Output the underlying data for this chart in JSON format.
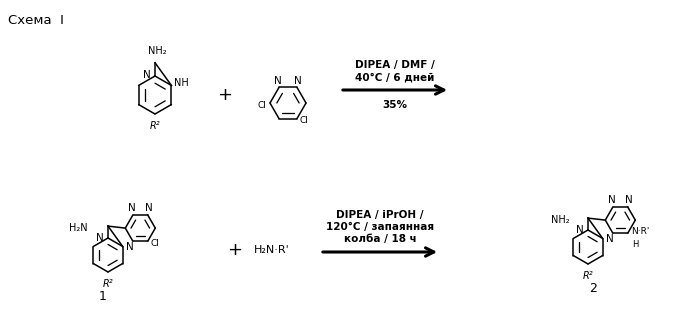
{
  "title": "Схема  I",
  "r1_cond1": "DIPEA / DMF /",
  "r1_cond2": "40°C / 6 дней",
  "r1_yield": "35%",
  "r2_cond1": "DIPEA / iPrOH /",
  "r2_cond2": "120°C / запаянная",
  "r2_cond3": "колба / 18 ч",
  "plus": "+",
  "label1": "1",
  "label2": "2",
  "h2nr": "H₂N·R'",
  "bg": "#ffffff",
  "fg": "#000000"
}
